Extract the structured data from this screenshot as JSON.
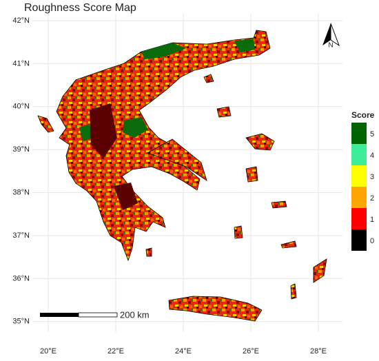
{
  "title": "Roughness Score Map",
  "axes": {
    "lat_ticks": [
      "42°N",
      "41°N",
      "40°N",
      "39°N",
      "38°N",
      "37°N",
      "36°N",
      "35°N"
    ],
    "lon_ticks": [
      "20°E",
      "22°E",
      "24°E",
      "26°E",
      "28°E"
    ]
  },
  "legend": {
    "title": "Score",
    "items": [
      {
        "label": "5",
        "color": "#006400"
      },
      {
        "label": "4",
        "color": "#3ded97"
      },
      {
        "label": "3",
        "color": "#ffff00"
      },
      {
        "label": "2",
        "color": "#ffa500"
      },
      {
        "label": "1",
        "color": "#ff0000"
      },
      {
        "label": "0",
        "color": "#000000"
      }
    ]
  },
  "scale_bar": "200 km",
  "north_arrow": "N"
}
